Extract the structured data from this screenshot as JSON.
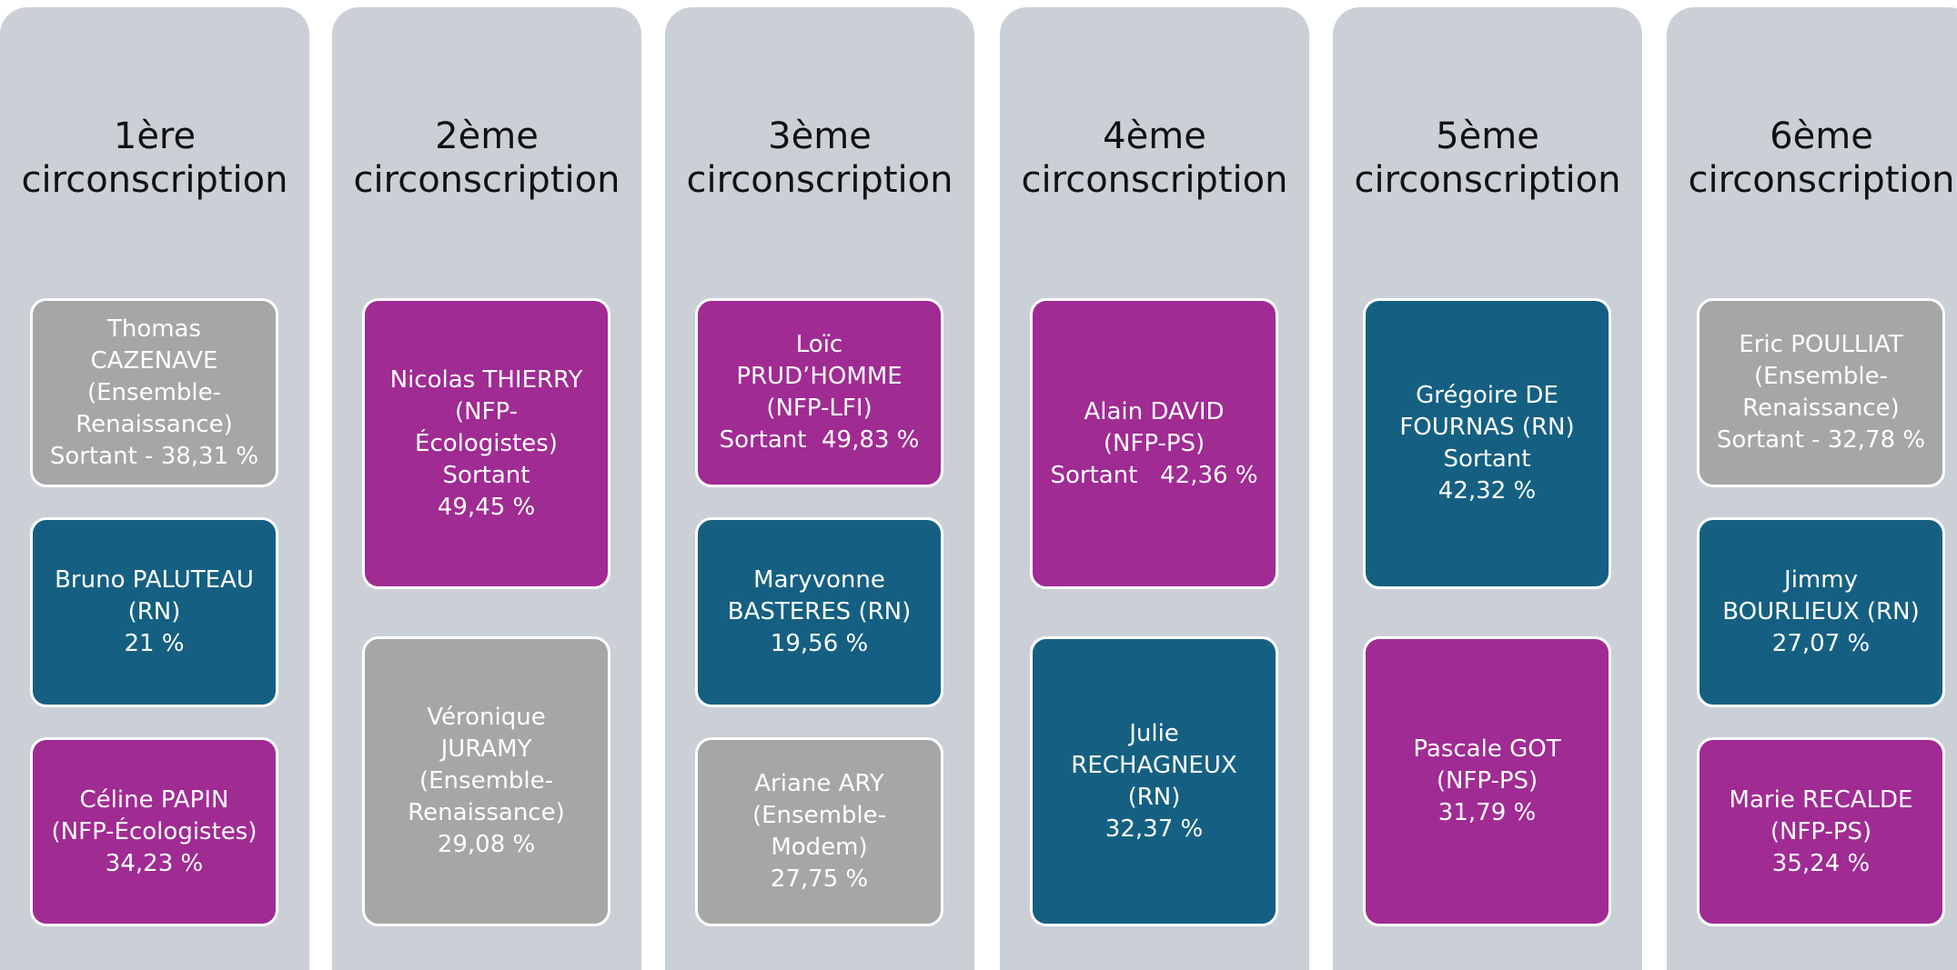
{
  "columns": [
    {
      "title": [
        "1ère",
        "circonscription"
      ],
      "cards": [
        {
          "color": "#a6a6a6",
          "lines": [
            "Thomas",
            "CAZENAVE",
            "(Ensemble-",
            "Renaissance)",
            "Sortant - 38,31 %"
          ]
        },
        {
          "color": "#156082",
          "lines": [
            "Bruno PALUTEAU",
            "(RN)",
            "21 %"
          ]
        },
        {
          "color": "#a02b93",
          "lines": [
            "Céline PAPIN",
            "(NFP-Écologistes)",
            "34,23 %"
          ]
        }
      ]
    },
    {
      "title": [
        "2ème",
        "circonscription"
      ],
      "cards": [
        {
          "color": "#a02b93",
          "lines": [
            "Nicolas THIERRY",
            "(NFP-",
            "Écologistes)",
            "Sortant",
            "49,45 %"
          ]
        },
        {
          "color": "#a6a6a6",
          "lines": [
            "Véronique",
            "JURAMY",
            "(Ensemble-",
            "Renaissance)",
            "29,08 %"
          ]
        }
      ]
    },
    {
      "title": [
        "3ème",
        "circonscription"
      ],
      "cards": [
        {
          "color": "#a02b93",
          "lines": [
            "Loïc",
            "PRUD’HOMME",
            "(NFP-LFI)",
            "Sortant  49,83 %"
          ]
        },
        {
          "color": "#156082",
          "lines": [
            "Maryvonne",
            "BASTERES (RN)",
            "19,56 %"
          ]
        },
        {
          "color": "#a6a6a6",
          "lines": [
            "Ariane ARY",
            "(Ensemble-",
            "Modem)",
            "27,75 %"
          ]
        }
      ]
    },
    {
      "title": [
        "4ème",
        "circonscription"
      ],
      "cards": [
        {
          "color": "#a02b93",
          "lines": [
            "Alain DAVID",
            "(NFP-PS)",
            "Sortant   42,36 %"
          ]
        },
        {
          "color": "#156082",
          "lines": [
            "Julie",
            "RECHAGNEUX",
            "(RN)",
            "32,37 %"
          ]
        }
      ]
    },
    {
      "title": [
        "5ème",
        "circonscription"
      ],
      "cards": [
        {
          "color": "#156082",
          "lines": [
            "Grégoire DE",
            "FOURNAS (RN)",
            "Sortant",
            "42,32 %"
          ]
        },
        {
          "color": "#a02b93",
          "lines": [
            "Pascale GOT",
            "(NFP-PS)",
            "31,79 %"
          ]
        }
      ]
    },
    {
      "title": [
        "6ème",
        "circonscription"
      ],
      "cards": [
        {
          "color": "#a6a6a6",
          "lines": [
            "Eric POULLIAT",
            "(Ensemble-",
            "Renaissance)",
            "Sortant - 32,78 %"
          ]
        },
        {
          "color": "#156082",
          "lines": [
            "Jimmy",
            "BOURLIEUX (RN)",
            "27,07 %"
          ]
        },
        {
          "color": "#a02b93",
          "lines": [
            "Marie RECALDE",
            "(NFP-PS)",
            "35,24 %"
          ]
        }
      ]
    }
  ]
}
